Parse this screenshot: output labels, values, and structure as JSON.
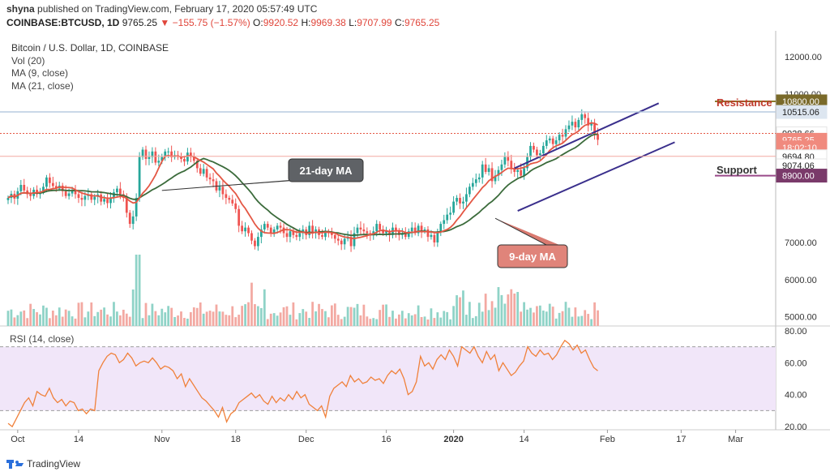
{
  "header": {
    "publisher": "shyna",
    "published_text": "published on TradingView.com, February 17, 2020 05:57:49 UTC"
  },
  "ohlc": {
    "symbol": "COINBASE:BTCUSD, 1D",
    "last": "9765.25",
    "change": "▼ −155.75 (−1.57%)",
    "open_label": "O:",
    "open": "9920.52",
    "high_label": "H:",
    "high": "9969.38",
    "low_label": "L:",
    "low": "9707.99",
    "close_label": "C:",
    "close": "9765.25"
  },
  "legend": {
    "title": "Bitcoin / U.S. Dollar, 1D, COINBASE",
    "vol": "Vol (20)",
    "ma9": "MA (9, close)",
    "ma21": "MA (21, close)"
  },
  "rsi": {
    "label": "RSI (14, close)",
    "values": [
      22,
      20,
      25,
      30,
      35,
      38,
      33,
      42,
      40,
      39,
      44,
      38,
      35,
      37,
      33,
      36,
      35,
      30,
      31,
      28,
      31,
      30,
      55,
      60,
      64,
      66,
      65,
      60,
      62,
      66,
      63,
      58,
      60,
      61,
      60,
      63,
      60,
      56,
      58,
      57,
      55,
      50,
      53,
      45,
      50,
      46,
      42,
      38,
      36,
      33,
      30,
      26,
      32,
      23,
      28,
      30,
      35,
      37,
      39,
      41,
      38,
      40,
      36,
      34,
      39,
      35,
      38,
      36,
      40,
      37,
      42,
      38,
      40,
      34,
      32,
      30,
      33,
      26,
      39,
      44,
      46,
      48,
      45,
      52,
      48,
      50,
      47,
      48,
      51,
      49,
      50,
      47,
      52,
      55,
      53,
      56,
      50,
      40,
      42,
      48,
      64,
      58,
      60,
      56,
      62,
      65,
      62,
      68,
      64,
      58,
      70,
      68,
      66,
      70,
      64,
      60,
      67,
      62,
      65,
      55,
      60,
      56,
      52,
      54,
      58,
      61,
      70,
      66,
      64,
      68,
      65,
      66,
      62,
      65,
      70,
      74,
      72,
      68,
      71,
      66,
      68,
      62,
      57,
      55
    ]
  },
  "annotations": {
    "ma21": "21-day MA",
    "ma9": "9-day MA",
    "resistance": "Resistance",
    "support": "Support"
  },
  "price_tags": [
    {
      "value": "10800.00",
      "y": 10800,
      "bg": "#7a6a2a",
      "fg": "#ffffff"
    },
    {
      "value": "10515.06",
      "y": 10515,
      "bg": "#dde6f0",
      "fg": "#222222"
    },
    {
      "value": "9938.66",
      "y": 9938,
      "bg": "#ffffff",
      "fg": "#222222"
    },
    {
      "value": "9765.25",
      "y": 9765,
      "bg": "#f08a7e",
      "fg": "#ffffff"
    },
    {
      "value": "18:02:10",
      "y": 9560,
      "bg": "#f08a7e",
      "fg": "#ffffff"
    },
    {
      "value": "9694.80",
      "y": 9320,
      "bg": "#ffffff",
      "fg": "#222222"
    },
    {
      "value": "9074.06",
      "y": 9074,
      "bg": "#ffffff",
      "fg": "#222222"
    },
    {
      "value": "8900.00",
      "y": 8800,
      "bg": "#7a3a6a",
      "fg": "#ffffff"
    }
  ],
  "brand": {
    "name": "TradingView"
  },
  "chart_data": {
    "type": "candlestick",
    "title": "Bitcoin / U.S. Dollar, 1D, COINBASE",
    "y_axis": {
      "ticks": [
        "12000.00",
        "11000.00",
        "7000.00",
        "6000.00",
        "5000.00"
      ],
      "tick_values": [
        12000,
        11000,
        7000,
        6000,
        5000
      ],
      "range": [
        4750,
        12700
      ]
    },
    "rsi_axis": {
      "ticks": [
        "80.00",
        "60.00",
        "40.00",
        "20.00"
      ],
      "tick_values": [
        80,
        60,
        40,
        20
      ],
      "range": [
        18,
        82
      ],
      "bands": [
        30,
        70
      ]
    },
    "x_axis": {
      "ticks": [
        "Oct",
        "14",
        "Nov",
        "18",
        "Dec",
        "16",
        "2020",
        "14",
        "Feb",
        "17",
        "Mar"
      ],
      "tick_index": [
        3,
        22,
        48,
        71,
        93,
        118,
        139,
        161,
        187,
        210,
        227
      ]
    },
    "candles_close": [
      8200,
      8310,
      8180,
      8380,
      8550,
      8400,
      8300,
      8250,
      8420,
      8300,
      8360,
      8500,
      8750,
      8600,
      8520,
      8450,
      8530,
      8380,
      8250,
      8320,
      8400,
      8300,
      8200,
      8150,
      8250,
      8300,
      8150,
      8230,
      8290,
      8100,
      8170,
      8060,
      8200,
      8350,
      8450,
      8300,
      8200,
      7800,
      7500,
      7700,
      8200,
      9300,
      9500,
      9250,
      9300,
      9450,
      9150,
      9200,
      9300,
      9450,
      9450,
      9300,
      9350,
      9300,
      9250,
      9180,
      9420,
      9300,
      9200,
      9000,
      8850,
      8980,
      8750,
      8700,
      8650,
      8400,
      8500,
      8300,
      8200,
      8150,
      8050,
      7900,
      7450,
      7300,
      7400,
      7250,
      7050,
      6900,
      7150,
      7350,
      7500,
      7400,
      7250,
      7350,
      7450,
      7400,
      7250,
      7150,
      7300,
      7200,
      7150,
      7250,
      7350,
      7200,
      7450,
      7250,
      7350,
      7200,
      7150,
      7300,
      7250,
      7200,
      7100,
      7050,
      6950,
      7100,
      7150,
      6900,
      7250,
      7400,
      7350,
      7300,
      7250,
      7200,
      7300,
      7500,
      7350,
      7250,
      7300,
      7200,
      7400,
      7300,
      7200,
      7250,
      7150,
      7300,
      7400,
      7250,
      7450,
      7300,
      7350,
      7150,
      7200,
      7000,
      7300,
      7500,
      7600,
      7750,
      7800,
      8100,
      8200,
      8050,
      8100,
      8300,
      8500,
      8600,
      8700,
      8750,
      9100,
      8900,
      9000,
      8650,
      8800,
      8950,
      9100,
      9300,
      9200,
      9000,
      8900,
      8950,
      8800,
      9000,
      9300,
      9600,
      9500,
      9350,
      9400,
      9600,
      9750,
      9800,
      9650,
      9750,
      9900,
      9850,
      10050,
      10150,
      10250,
      10100,
      10300,
      10450,
      10350,
      10150,
      10200,
      9920,
      9765
    ],
    "ma9": "red (#e45744)",
    "ma21": "dark green (#3b6b3b)",
    "resistance_level": 10800,
    "support_level": 8900
  }
}
